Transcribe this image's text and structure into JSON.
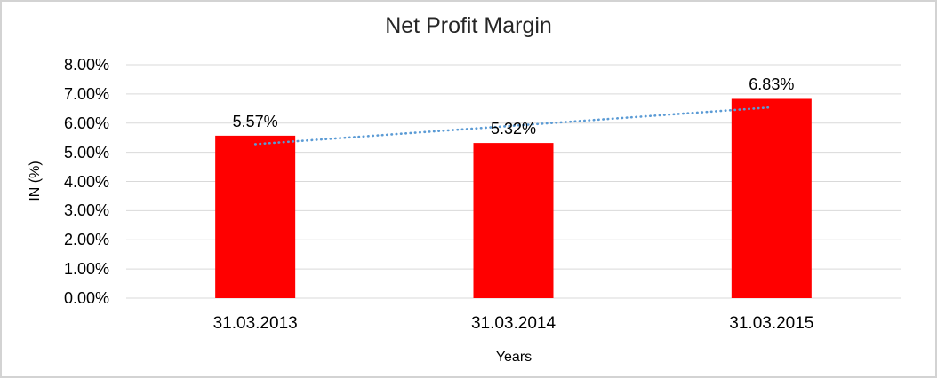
{
  "chart_data": {
    "type": "bar",
    "title": "Net Profit Margin",
    "xlabel": "Years",
    "ylabel": "IN (%)",
    "categories": [
      "31.03.2013",
      "31.03.2014",
      "31.03.2015"
    ],
    "values": [
      5.57,
      5.32,
      6.83
    ],
    "data_labels": [
      "5.57%",
      "5.32%",
      "6.83%"
    ],
    "y_ticks": [
      "0.00%",
      "1.00%",
      "2.00%",
      "3.00%",
      "4.00%",
      "5.00%",
      "6.00%",
      "7.00%",
      "8.00%"
    ],
    "ylim": [
      0,
      8
    ],
    "grid": true,
    "legend": "none",
    "trendline": {
      "type": "linear",
      "style": "dotted",
      "endpoint_values": [
        5.28,
        6.54
      ]
    },
    "colors": {
      "bar": "#FF0000",
      "trendline": "#5B9BD5",
      "gridline": "#D9D9D9",
      "text": "#000000",
      "frame_border": "#D3D3D3",
      "background": "#FFFFFF"
    }
  }
}
